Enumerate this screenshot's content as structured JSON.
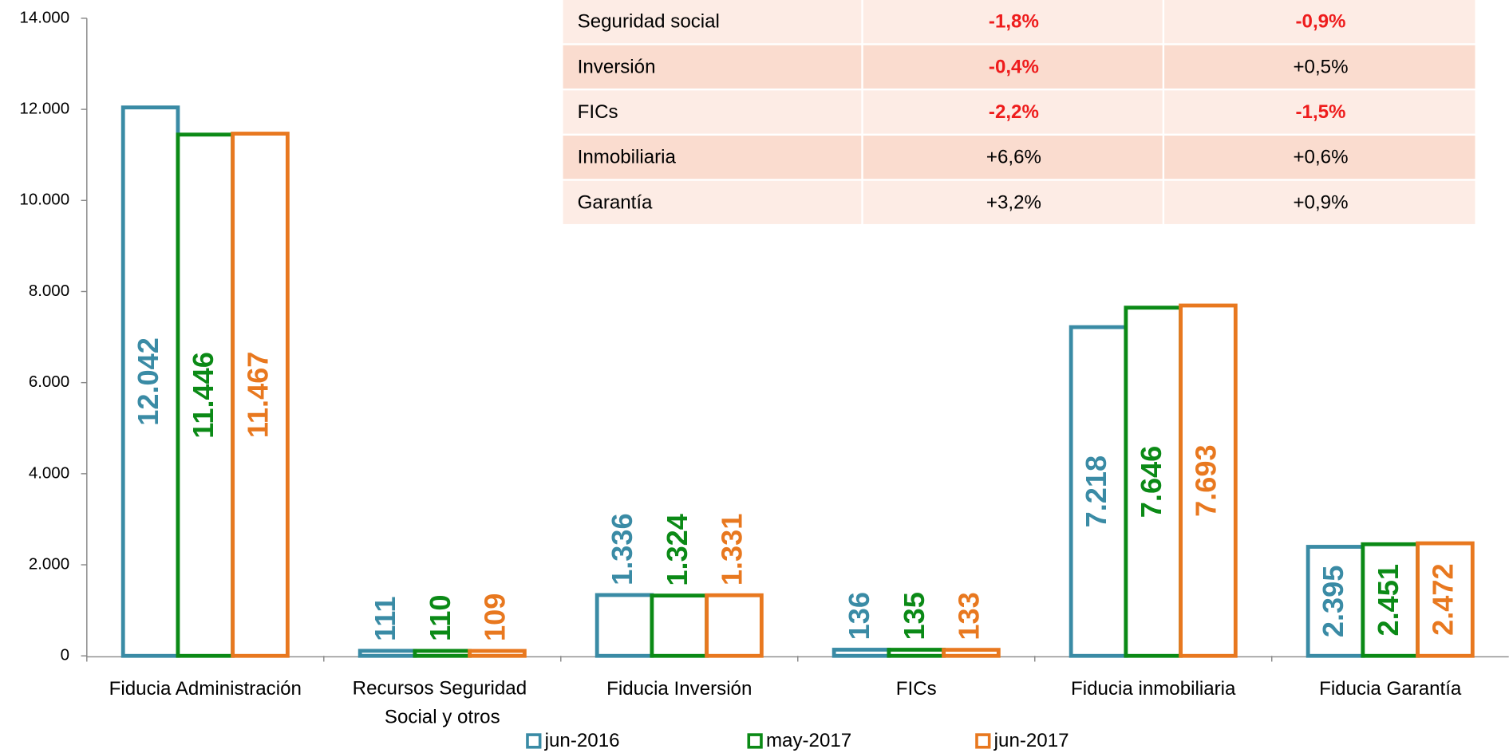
{
  "chart_data": {
    "type": "bar",
    "categories": [
      "Fiducia Administración",
      "Recursos Seguridad Social y otros",
      "Fiducia Inversión",
      "FICs",
      "Fiducia inmobiliaria",
      "Fiducia Garantía"
    ],
    "series": [
      {
        "name": "jun-2016",
        "color": "#3a8ba5",
        "values": [
          12042,
          111,
          1336,
          136,
          7218,
          2395
        ],
        "value_labels": [
          "12.042",
          "111",
          "1.336",
          "136",
          "7.218",
          "2.395"
        ]
      },
      {
        "name": "may-2017",
        "color": "#0b8a16",
        "values": [
          11446,
          110,
          1324,
          135,
          7646,
          2451
        ],
        "value_labels": [
          "11.446",
          "110",
          "1.324",
          "135",
          "7.646",
          "2.451"
        ]
      },
      {
        "name": "jun-2017",
        "color": "#e8781f",
        "values": [
          11467,
          109,
          1331,
          133,
          7693,
          2472
        ],
        "value_labels": [
          "11.467",
          "109",
          "1.331",
          "133",
          "7.693",
          "2.472"
        ]
      }
    ],
    "ylim": [
      0,
      14000
    ],
    "yticks": [
      0,
      {
        "value": 2000,
        "label": "2.000"
      },
      {
        "value": 4000,
        "label": "4.000"
      },
      {
        "value": 6000,
        "label": "6.000"
      },
      {
        "value": 8000,
        "label": "8.000"
      },
      {
        "value": 10000,
        "label": "10.000"
      },
      {
        "value": 12000,
        "label": "12.000"
      },
      {
        "value": 14000,
        "label": "14.000"
      }
    ],
    "grid": false,
    "legend": "bottom"
  },
  "table": {
    "rows": [
      [
        "Seguridad social",
        "-1,8%",
        "-0,9%"
      ],
      [
        "Inversión",
        "-0,4%",
        "+0,5%"
      ],
      [
        "FICs",
        "-2,2%",
        "-1,5%"
      ],
      [
        "Inmobiliaria",
        "+6,6%",
        "+0,6%"
      ],
      [
        "Garantía",
        "+3,2%",
        "+0,9%"
      ]
    ]
  }
}
